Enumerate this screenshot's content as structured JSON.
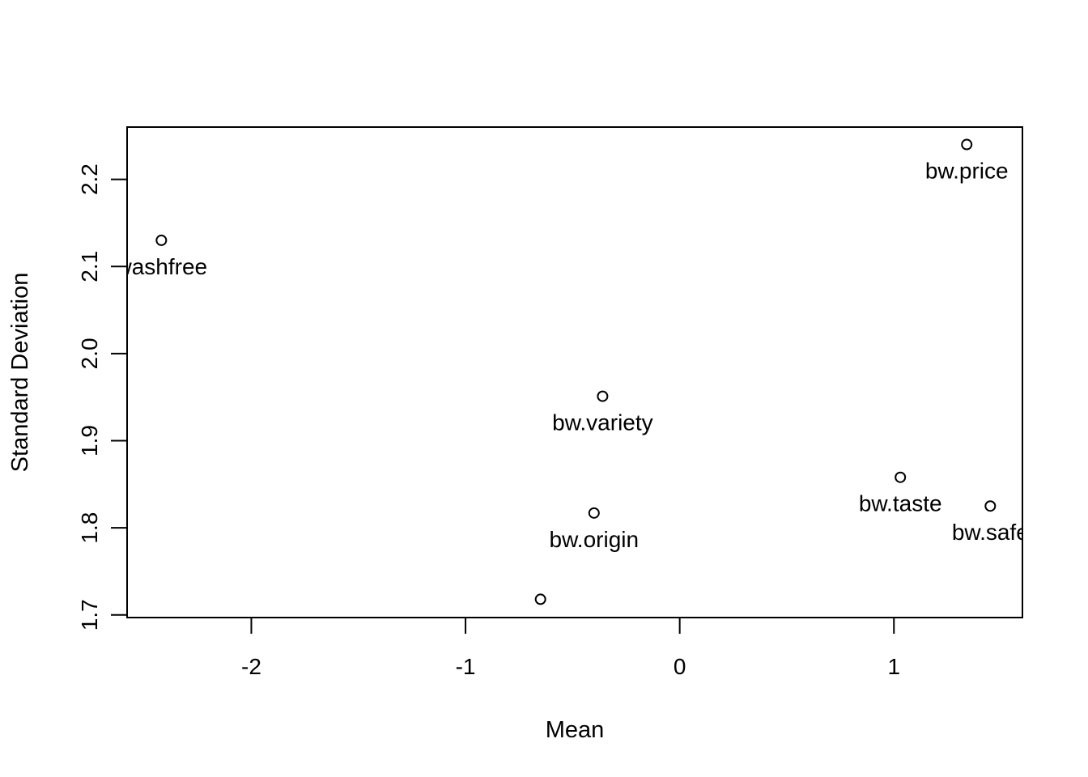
{
  "chart_data": {
    "type": "scatter",
    "title": "",
    "xlabel": "Mean",
    "ylabel": "Standard Deviation",
    "xlim": [
      -2.58,
      1.6
    ],
    "ylim": [
      1.697,
      2.26
    ],
    "x_ticks": [
      -2,
      -1,
      0,
      1
    ],
    "x_tick_labels": [
      "-2",
      "-1",
      "0",
      "1"
    ],
    "y_ticks": [
      1.7,
      1.8,
      1.9,
      2.0,
      2.1,
      2.2
    ],
    "y_tick_labels": [
      "1.7",
      "1.8",
      "1.9",
      "2.0",
      "2.1",
      "2.2"
    ],
    "grid": false,
    "legend": "none",
    "points": [
      {
        "label": "washfree",
        "x": -2.42,
        "y": 2.13
      },
      {
        "label": "bw.price",
        "x": 1.34,
        "y": 2.24
      },
      {
        "label": "bw.variety",
        "x": -0.36,
        "y": 1.951
      },
      {
        "label": "bw.taste",
        "x": 1.03,
        "y": 1.858
      },
      {
        "label": "bw.safe",
        "x": 1.45,
        "y": 1.825
      },
      {
        "label": "bw.origin",
        "x": -0.4,
        "y": 1.817
      },
      {
        "label": "",
        "x": -0.65,
        "y": 1.718
      }
    ]
  }
}
